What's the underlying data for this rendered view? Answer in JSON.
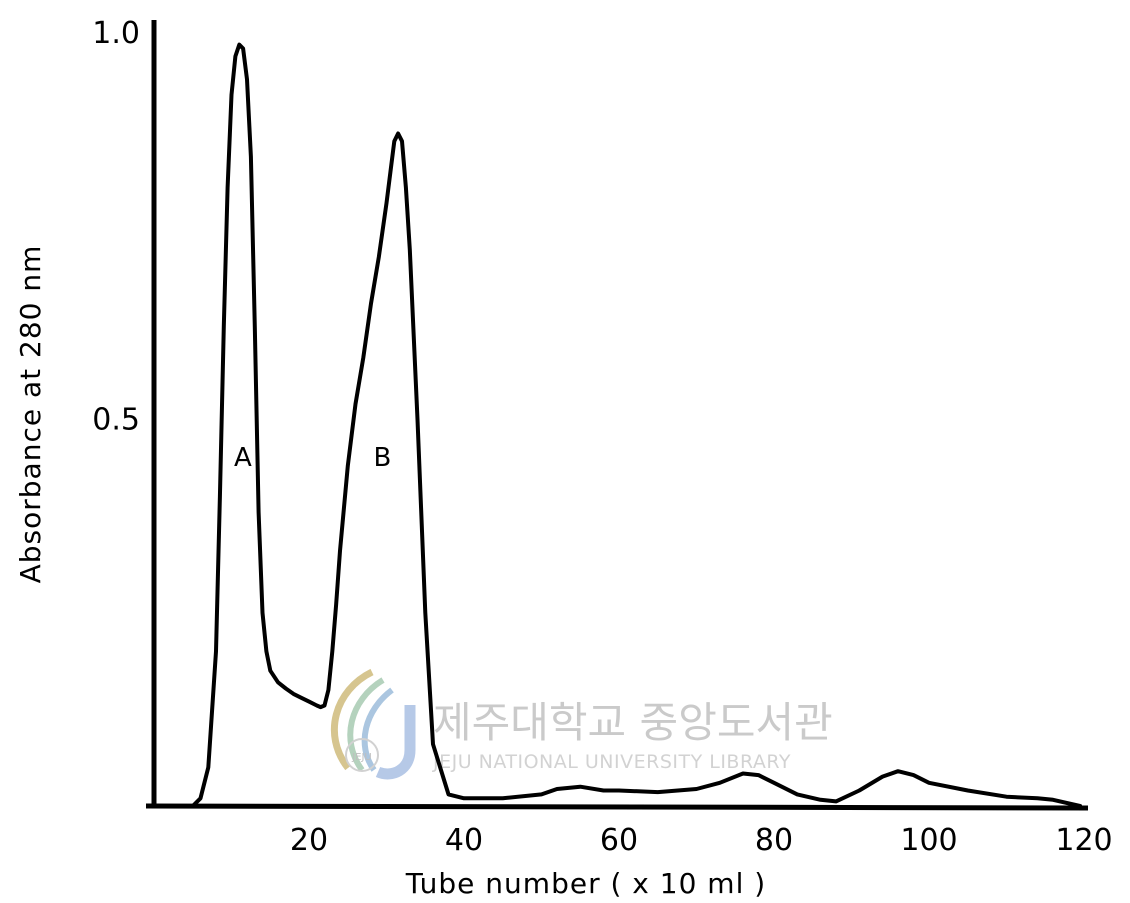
{
  "chart_data": {
    "type": "line",
    "title": "",
    "xlabel": "Tube number ( x 10 ml )",
    "ylabel": "Absorbance at 280 nm",
    "xlim": [
      0,
      120
    ],
    "ylim": [
      0,
      1.0
    ],
    "x_ticks": [
      20,
      40,
      60,
      80,
      100,
      120
    ],
    "x_tick_labels": [
      "20",
      "40",
      "60",
      "80",
      "100",
      "120"
    ],
    "y_ticks": [
      0.5,
      1.0
    ],
    "y_tick_labels": [
      "0.5",
      "1.0"
    ],
    "grid": false,
    "legend": "none",
    "series": [
      {
        "color": "#000000",
        "x": [
          0,
          5,
          6,
          7,
          8,
          8.5,
          9,
          9.5,
          10,
          10.5,
          11,
          11.5,
          12,
          12.5,
          13,
          13.5,
          14,
          14.5,
          15,
          16,
          17,
          18,
          19,
          20,
          21,
          21.5,
          22,
          22.5,
          23,
          23.5,
          24,
          25,
          26,
          27,
          28,
          29,
          30,
          30.5,
          31,
          31.5,
          32,
          32.5,
          33,
          34,
          35,
          36,
          38,
          40,
          45,
          50,
          52,
          55,
          58,
          60,
          65,
          70,
          73,
          76,
          78,
          80,
          83,
          86,
          88,
          91,
          94,
          96,
          98,
          100,
          105,
          110,
          114,
          116,
          119.5
        ],
        "y": [
          0,
          0,
          0.01,
          0.05,
          0.2,
          0.4,
          0.62,
          0.8,
          0.92,
          0.97,
          0.985,
          0.98,
          0.94,
          0.84,
          0.62,
          0.38,
          0.25,
          0.2,
          0.175,
          0.16,
          0.152,
          0.145,
          0.14,
          0.135,
          0.13,
          0.128,
          0.13,
          0.15,
          0.2,
          0.26,
          0.33,
          0.44,
          0.52,
          0.58,
          0.65,
          0.71,
          0.78,
          0.82,
          0.86,
          0.87,
          0.86,
          0.8,
          0.72,
          0.5,
          0.25,
          0.08,
          0.015,
          0.01,
          0.01,
          0.015,
          0.022,
          0.025,
          0.02,
          0.02,
          0.018,
          0.022,
          0.03,
          0.042,
          0.04,
          0.03,
          0.015,
          0.008,
          0.006,
          0.02,
          0.038,
          0.045,
          0.04,
          0.03,
          0.02,
          0.012,
          0.01,
          0.008,
          0.0
        ]
      }
    ],
    "annotations": [
      {
        "text": "A",
        "x": 12.5,
        "y": 0.44
      },
      {
        "text": "B",
        "x": 30.5,
        "y": 0.44
      }
    ]
  },
  "watermark": {
    "title": "제주대학교 중앙도서관",
    "subtitle": "JEJU NATIONAL UNIVERSITY LIBRARY",
    "logo_text": "JEJU",
    "logo_icon": "library-seal-icon",
    "color": "#b9b9b9"
  }
}
